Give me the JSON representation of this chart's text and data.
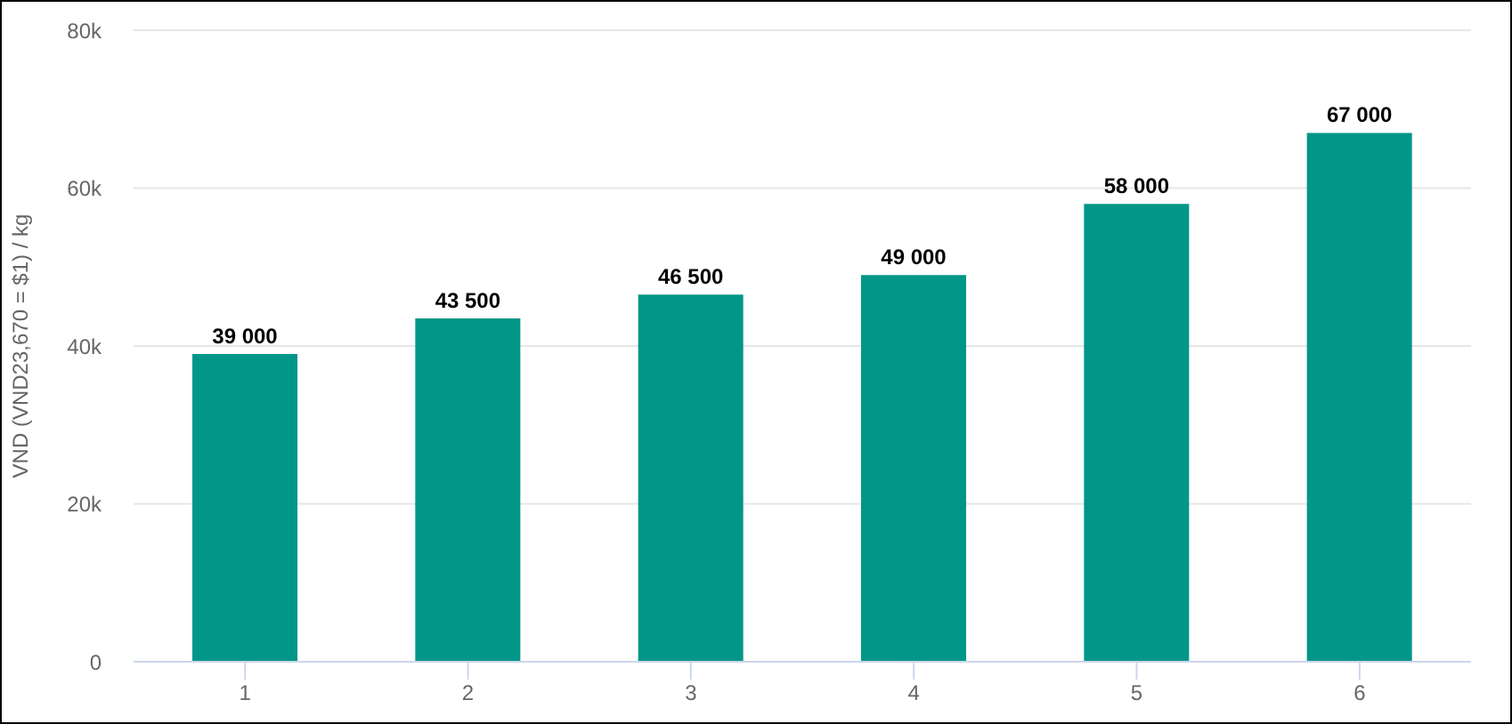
{
  "chart_data": {
    "type": "bar",
    "categories": [
      "1",
      "2",
      "3",
      "4",
      "5",
      "6"
    ],
    "values": [
      39000,
      43500,
      46500,
      49000,
      58000,
      67000
    ],
    "value_labels": [
      "39 000",
      "43 500",
      "46 500",
      "49 000",
      "58 000",
      "67 000"
    ],
    "color": "#009688",
    "ylabel": "VND (VND23,670 = $1) / kg",
    "ylim": [
      0,
      80000
    ],
    "yticks": [
      0,
      {
        "value": 20000,
        "label": "20k"
      },
      {
        "value": 40000,
        "label": "40k"
      },
      {
        "value": 60000,
        "label": "60k"
      },
      {
        "value": 80000,
        "label": "80k"
      }
    ],
    "grid": "y"
  }
}
